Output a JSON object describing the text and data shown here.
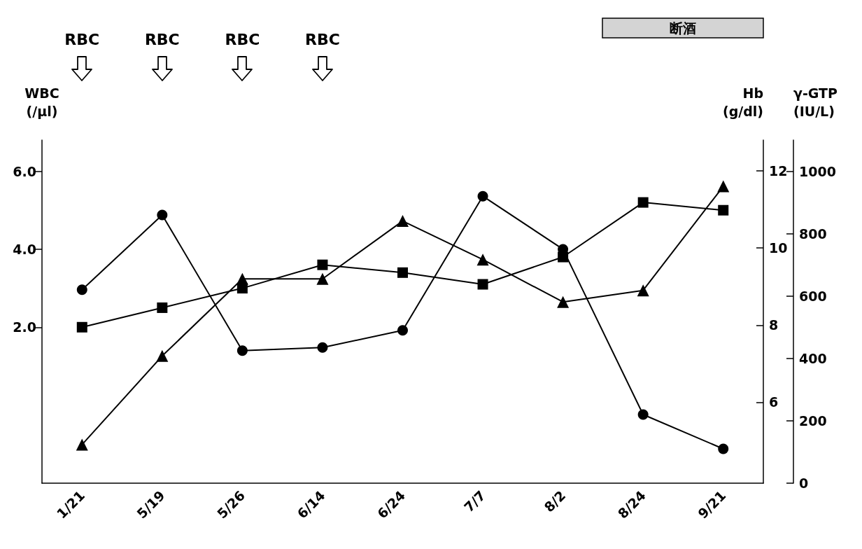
{
  "chart_data": {
    "type": "line",
    "categories": [
      "1/21",
      "5/19",
      "5/26",
      "6/14",
      "6/24",
      "7/7",
      "8/2",
      "8/24",
      "9/21"
    ],
    "series": [
      {
        "color": "#000000",
        "marker": "square",
        "values": [
          2.0,
          2.5,
          3.0,
          3.6,
          3.4,
          3.1,
          3.8,
          5.2,
          5.0
        ]
      },
      {
        "color": "#000000",
        "marker": "triangle",
        "axis": "y2",
        "values": [
          4.9,
          7.2,
          9.2,
          9.2,
          10.7,
          9.7,
          8.6,
          8.9,
          11.6
        ]
      },
      {
        "color": "#000000",
        "marker": "circle",
        "axis": "y3",
        "values": [
          620,
          860,
          425,
          435,
          490,
          920,
          750,
          220,
          110
        ]
      }
    ],
    "ylabel": "WBC\n(/μl)",
    "y2label": "Hb\n(g/dl)",
    "y3label": "γ-GTP\n(IU/L)",
    "ylim": [
      -2,
      6.8
    ],
    "yticks": [
      {
        "value": 2,
        "label": "2.0"
      },
      {
        "value": 4,
        "label": "4.0"
      },
      {
        "value": 6,
        "label": "6.0"
      }
    ],
    "y2lim": [
      3.9,
      12.8
    ],
    "y2ticks": [
      6,
      8,
      10,
      12
    ],
    "y3lim": [
      0,
      1100
    ],
    "y3ticks": [
      0,
      200,
      400,
      600,
      800,
      1000
    ],
    "line_style": "solid",
    "annotations": [
      "RBC",
      "RBC",
      "RBC",
      "RBC",
      "断酒"
    ]
  }
}
